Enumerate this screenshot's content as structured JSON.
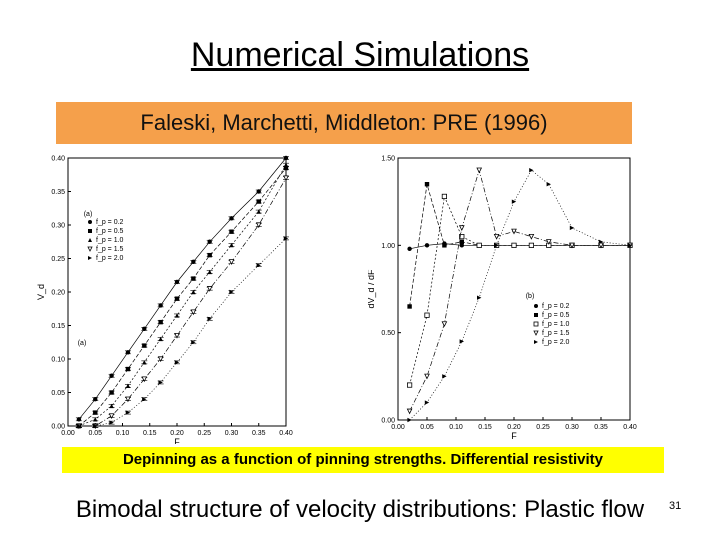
{
  "slide": {
    "title": "Numerical Simulations",
    "citation": "Faleski, Marchetti, Middleton: PRE (1996)",
    "caption": "Depinning as a function of pinning strengths. Differential resistivity",
    "bottom_text": "Bimodal structure of velocity distributions: Plastic flow",
    "slide_number": "31"
  },
  "chart_data": [
    {
      "type": "line",
      "panel_label": "(a)",
      "xlabel": "F",
      "ylabel": "V_d",
      "xlim": [
        0.0,
        0.4
      ],
      "ylim": [
        0.0,
        0.4
      ],
      "xticks": [
        "0.00",
        "0.05",
        "0.10",
        "0.15",
        "0.20",
        "0.25",
        "0.30",
        "0.35",
        "0.40"
      ],
      "yticks": [
        "0.00",
        "0.05",
        "0.10",
        "0.15",
        "0.20",
        "0.25",
        "0.30",
        "0.35",
        "0.40"
      ],
      "x": [
        0.02,
        0.05,
        0.08,
        0.11,
        0.14,
        0.17,
        0.2,
        0.23,
        0.26,
        0.3,
        0.35,
        0.4
      ],
      "series": [
        {
          "name": "f_p = 0.2",
          "marker": "circle",
          "values": [
            0.01,
            0.04,
            0.075,
            0.11,
            0.145,
            0.18,
            0.215,
            0.245,
            0.275,
            0.31,
            0.35,
            0.4
          ]
        },
        {
          "name": "f_p = 0.5",
          "marker": "square",
          "values": [
            0.0,
            0.02,
            0.05,
            0.085,
            0.12,
            0.155,
            0.19,
            0.22,
            0.255,
            0.29,
            0.335,
            0.385
          ]
        },
        {
          "name": "f_p = 1.0",
          "marker": "triangle-up",
          "values": [
            0.0,
            0.01,
            0.03,
            0.06,
            0.095,
            0.13,
            0.165,
            0.2,
            0.23,
            0.27,
            0.32,
            0.39
          ]
        },
        {
          "name": "f_p = 1.5",
          "marker": "triangle-down",
          "values": [
            0.0,
            0.0,
            0.015,
            0.04,
            0.07,
            0.1,
            0.135,
            0.17,
            0.205,
            0.245,
            0.3,
            0.37
          ]
        },
        {
          "name": "f_p = 2.0",
          "marker": "triangle-right",
          "values": [
            0.0,
            0.0,
            0.005,
            0.02,
            0.04,
            0.065,
            0.095,
            0.125,
            0.16,
            0.2,
            0.24,
            0.28
          ]
        }
      ],
      "legend_position": "top-left"
    },
    {
      "type": "line",
      "panel_label": "(b)",
      "xlabel": "F",
      "ylabel": "dV_d / dF",
      "xlim": [
        0.0,
        0.4
      ],
      "ylim": [
        0.0,
        1.5
      ],
      "xticks": [
        "0.00",
        "0.05",
        "0.10",
        "0.15",
        "0.20",
        "0.25",
        "0.30",
        "0.35",
        "0.40"
      ],
      "yticks": [
        "0.00",
        "0.50",
        "1.00",
        "1.50"
      ],
      "x": [
        0.02,
        0.05,
        0.08,
        0.11,
        0.14,
        0.17,
        0.2,
        0.23,
        0.26,
        0.3,
        0.35,
        0.4
      ],
      "series": [
        {
          "name": "f_p = 0.2",
          "marker": "circle",
          "values": [
            0.98,
            1.0,
            1.01,
            1.0,
            1.0,
            1.0,
            1.0,
            1.0,
            1.0,
            1.0,
            1.0,
            1.0
          ]
        },
        {
          "name": "f_p = 0.5",
          "marker": "square",
          "values": [
            0.65,
            1.35,
            1.0,
            1.02,
            1.0,
            1.0,
            1.0,
            1.0,
            1.0,
            1.0,
            1.0,
            1.0
          ]
        },
        {
          "name": "f_p = 1.0",
          "marker": "square-open",
          "values": [
            0.2,
            0.6,
            1.28,
            1.05,
            1.0,
            1.0,
            1.0,
            1.0,
            1.0,
            1.0,
            1.0,
            1.0
          ]
        },
        {
          "name": "f_p = 1.5",
          "marker": "triangle-down",
          "values": [
            0.05,
            0.25,
            0.55,
            1.1,
            1.43,
            1.05,
            1.08,
            1.05,
            1.02,
            1.0,
            1.0,
            1.0
          ]
        },
        {
          "name": "f_p = 2.0",
          "marker": "triangle-right",
          "values": [
            0.0,
            0.1,
            0.25,
            0.45,
            0.7,
            1.0,
            1.25,
            1.43,
            1.35,
            1.1,
            1.02,
            1.0
          ]
        }
      ],
      "legend_position": "bottom-right"
    }
  ]
}
